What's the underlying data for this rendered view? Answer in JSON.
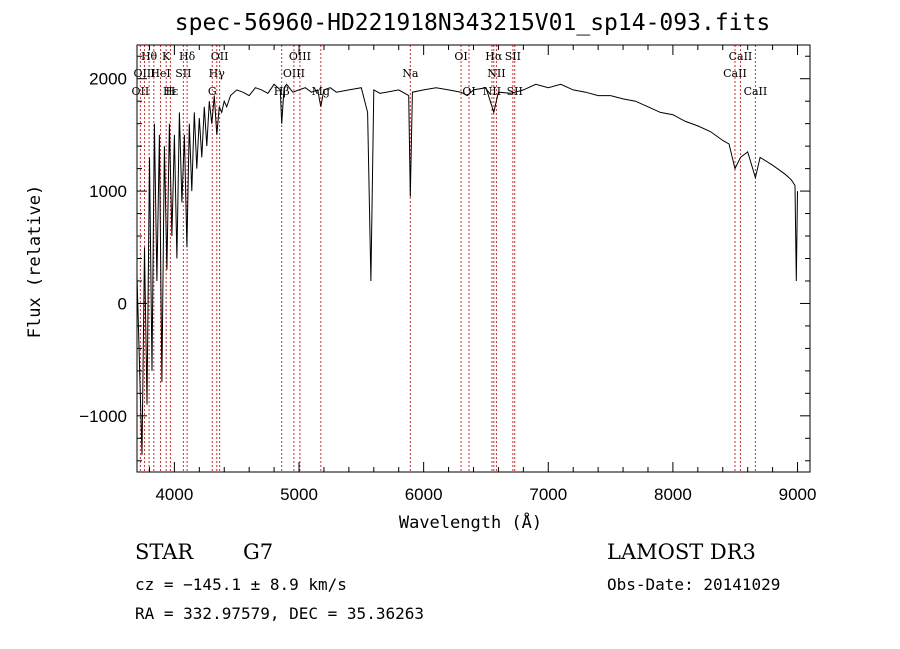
{
  "chart_data": {
    "type": "line",
    "title": "spec-56960-HD221918N343215V01_sp14-093.fits",
    "xlabel": "Wavelength (Å)",
    "ylabel": "Flux (relative)",
    "xlim": [
      3700,
      9100
    ],
    "ylim": [
      -1500,
      2300
    ],
    "xticks": [
      4000,
      5000,
      6000,
      7000,
      8000,
      9000
    ],
    "yticks": [
      -1000,
      0,
      1000,
      2000
    ],
    "grid": false,
    "series": [
      {
        "name": "flux",
        "x": [
          3700,
          3740,
          3760,
          3780,
          3800,
          3820,
          3840,
          3860,
          3880,
          3900,
          3920,
          3940,
          3960,
          3980,
          4000,
          4020,
          4040,
          4060,
          4080,
          4100,
          4120,
          4140,
          4160,
          4180,
          4200,
          4220,
          4240,
          4260,
          4280,
          4300,
          4320,
          4340,
          4360,
          4380,
          4400,
          4420,
          4450,
          4500,
          4550,
          4600,
          4650,
          4700,
          4750,
          4800,
          4850,
          4861,
          4880,
          4900,
          4950,
          5000,
          5050,
          5100,
          5150,
          5175,
          5200,
          5250,
          5300,
          5400,
          5500,
          5550,
          5577,
          5600,
          5650,
          5700,
          5800,
          5880,
          5893,
          5910,
          6000,
          6100,
          6200,
          6300,
          6350,
          6400,
          6500,
          6563,
          6600,
          6700,
          6800,
          6900,
          7000,
          7100,
          7200,
          7300,
          7400,
          7500,
          7600,
          7700,
          7800,
          7900,
          8000,
          8100,
          8200,
          8300,
          8400,
          8450,
          8498,
          8542,
          8600,
          8662,
          8700,
          8800,
          8900,
          8950,
          8980,
          8990,
          9000
        ],
        "values": [
          250,
          -1350,
          500,
          -900,
          1300,
          -600,
          1600,
          200,
          1500,
          -700,
          1400,
          300,
          1600,
          600,
          1500,
          400,
          1700,
          900,
          1500,
          500,
          1600,
          1000,
          1700,
          1200,
          1650,
          1300,
          1750,
          1400,
          1800,
          1600,
          1850,
          1500,
          1750,
          1700,
          1800,
          1750,
          1850,
          1900,
          1880,
          1850,
          1920,
          1900,
          1870,
          1950,
          1900,
          1600,
          1920,
          1950,
          1880,
          1900,
          1920,
          1880,
          1900,
          1750,
          1900,
          1920,
          1880,
          1900,
          1920,
          1700,
          200,
          1900,
          1870,
          1880,
          1900,
          1850,
          950,
          1880,
          1900,
          1920,
          1900,
          1880,
          1850,
          1900,
          1920,
          1700,
          1880,
          1870,
          1900,
          1950,
          1920,
          1950,
          1900,
          1880,
          1850,
          1850,
          1820,
          1800,
          1750,
          1700,
          1680,
          1620,
          1580,
          1530,
          1450,
          1420,
          1200,
          1300,
          1350,
          1120,
          1300,
          1230,
          1150,
          1100,
          1050,
          200,
          1000
        ]
      }
    ],
    "line_labels": [
      {
        "text": "Hθ",
        "x": 3797,
        "row": 1
      },
      {
        "text": "K",
        "x": 3934,
        "row": 1
      },
      {
        "text": "Hδ",
        "x": 4102,
        "row": 1
      },
      {
        "text": "OII",
        "x": 4363,
        "row": 1
      },
      {
        "text": "OIII",
        "x": 5007,
        "row": 1
      },
      {
        "text": "OI",
        "x": 6300,
        "row": 1
      },
      {
        "text": "Hα",
        "x": 6563,
        "row": 1
      },
      {
        "text": "SII",
        "x": 6716,
        "row": 1
      },
      {
        "text": "CaII",
        "x": 8542,
        "row": 1
      },
      {
        "text": "OIII",
        "x": 3760,
        "row": 2
      },
      {
        "text": "HeI",
        "x": 3889,
        "row": 2
      },
      {
        "text": "SII",
        "x": 4072,
        "row": 2
      },
      {
        "text": "Hγ",
        "x": 4340,
        "row": 2
      },
      {
        "text": "OIII",
        "x": 4959,
        "row": 2
      },
      {
        "text": "Na",
        "x": 5893,
        "row": 2
      },
      {
        "text": "NII",
        "x": 6584,
        "row": 2
      },
      {
        "text": "CaII",
        "x": 8498,
        "row": 2
      },
      {
        "text": "OII",
        "x": 3727,
        "row": 3
      },
      {
        "text": "Hε",
        "x": 3970,
        "row": 3
      },
      {
        "text": "H",
        "x": 3968,
        "row": 3
      },
      {
        "text": "G",
        "x": 4304,
        "row": 3
      },
      {
        "text": "Hβ",
        "x": 4861,
        "row": 3
      },
      {
        "text": "Mg",
        "x": 5175,
        "row": 3
      },
      {
        "text": "OI",
        "x": 6364,
        "row": 3
      },
      {
        "text": "NII",
        "x": 6548,
        "row": 3
      },
      {
        "text": "SII",
        "x": 6731,
        "row": 3
      },
      {
        "text": "CaII",
        "x": 8662,
        "row": 3
      }
    ],
    "line_markers": [
      3727,
      3760,
      3797,
      3835,
      3889,
      3934,
      3968,
      4072,
      4102,
      4304,
      4340,
      4363,
      4861,
      4959,
      5007,
      5175,
      5893,
      6300,
      6364,
      6548,
      6563,
      6584,
      6716,
      6731,
      8498,
      8542,
      8662
    ]
  },
  "info": {
    "object_class": "STAR",
    "subclass": "G7",
    "survey": "LAMOST DR3",
    "cz": "cz = −145.1 ± 8.9 km/s",
    "obs_date": "Obs-Date: 20141029",
    "coords": "RA = 332.97579, DEC =  35.36263"
  },
  "colors": {
    "line": "#000000",
    "marker": "#c83232",
    "axis": "#000000"
  }
}
